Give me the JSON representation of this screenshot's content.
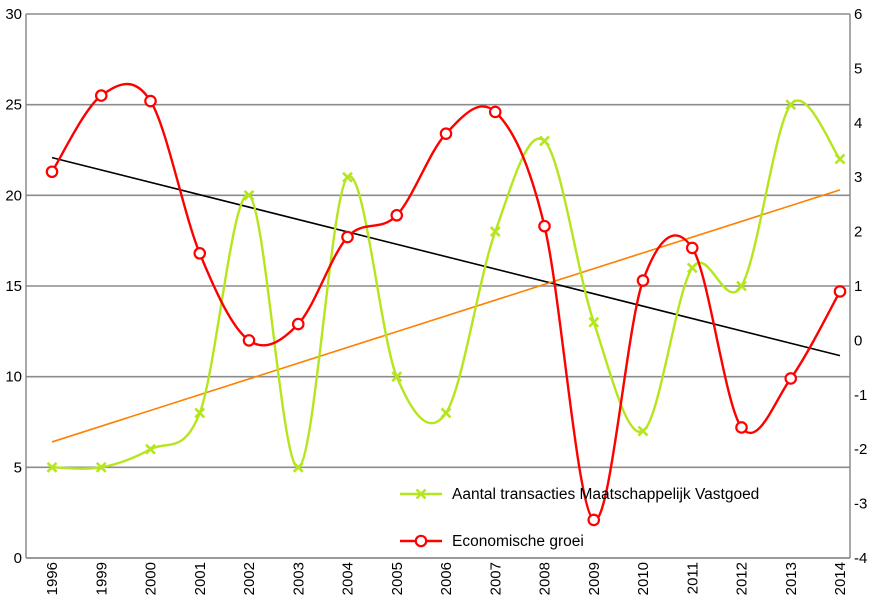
{
  "chart_data": {
    "type": "line",
    "categories": [
      "1996",
      "1999",
      "2000",
      "2001",
      "2002",
      "2003",
      "2004",
      "2005",
      "2006",
      "2007",
      "2008",
      "2009",
      "2010",
      "2011",
      "2012",
      "2013",
      "2014"
    ],
    "y_left": {
      "min": 0,
      "max": 30,
      "ticks": [
        "0",
        "5",
        "10",
        "15",
        "20",
        "25",
        "30"
      ]
    },
    "y_right": {
      "min": -4,
      "max": 6,
      "ticks": [
        "-4",
        "-3",
        "-2",
        "-1",
        "0",
        "1",
        "2",
        "3",
        "4",
        "5",
        "6"
      ]
    },
    "grid": "horizontal",
    "legend_position": "bottom-right",
    "series": [
      {
        "name": "Aantal transacties Maatschappelijk Vastgoed",
        "axis": "left",
        "color": "#b5e61d",
        "marker": "x",
        "smooth": true,
        "values": [
          5,
          5,
          6,
          8,
          20,
          5,
          21,
          10,
          8,
          18,
          23,
          13,
          7,
          16,
          15,
          25,
          22
        ]
      },
      {
        "name": "Economische groei",
        "axis": "right",
        "color": "#ff0000",
        "marker": "open-circle",
        "smooth": true,
        "values": [
          3.1,
          4.5,
          4.4,
          1.6,
          0.0,
          0.3,
          1.9,
          2.3,
          3.8,
          4.2,
          2.1,
          -3.3,
          1.1,
          1.7,
          -1.6,
          -0.7,
          0.9
        ]
      }
    ],
    "trendlines": [
      {
        "of": "Economische groei",
        "axis": "right",
        "color": "#000000",
        "start": 3.36,
        "end": -0.28
      },
      {
        "of": "Aantal transacties Maatschappelijk Vastgoed",
        "axis": "left",
        "color": "#ff8000",
        "start": 6.4,
        "end": 20.3
      }
    ]
  }
}
